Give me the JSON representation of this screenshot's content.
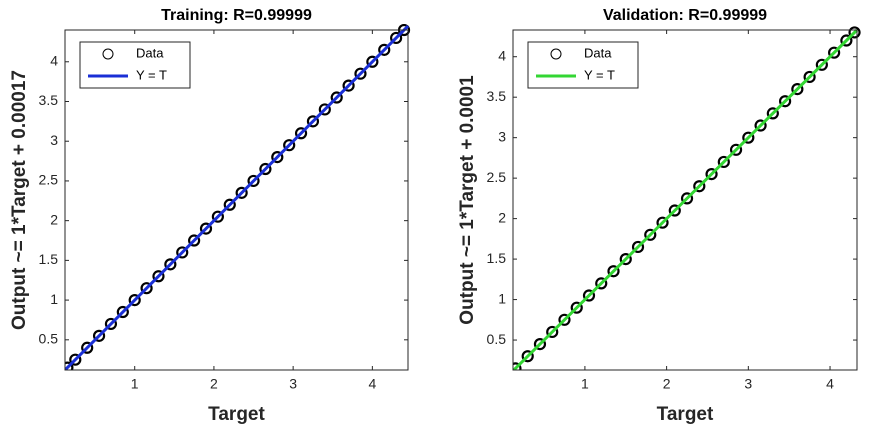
{
  "chart_data": [
    {
      "type": "scatter",
      "title": "Training: R=0.99999",
      "xlabel": "Target",
      "ylabel": "Output ~= 1*Target + 0.00017",
      "xlim": [
        0.12,
        4.45
      ],
      "ylim": [
        0.12,
        4.4
      ],
      "xticks": [
        1,
        2,
        3,
        4
      ],
      "yticks": [
        0.5,
        1,
        1.5,
        2,
        2.5,
        3,
        3.5,
        4
      ],
      "legend": "upper left",
      "series": [
        {
          "name": "Data",
          "color": "#000000",
          "x": [
            0.15,
            0.25,
            0.4,
            0.55,
            0.7,
            0.85,
            1.0,
            1.15,
            1.3,
            1.45,
            1.6,
            1.75,
            1.9,
            2.05,
            2.2,
            2.35,
            2.5,
            2.65,
            2.8,
            2.95,
            3.1,
            3.25,
            3.4,
            3.55,
            3.7,
            3.85,
            4.0,
            4.15,
            4.3,
            4.4
          ],
          "values": [
            0.15,
            0.25,
            0.4,
            0.55,
            0.7,
            0.85,
            1.0,
            1.15,
            1.3,
            1.45,
            1.6,
            1.75,
            1.9,
            2.05,
            2.2,
            2.35,
            2.5,
            2.65,
            2.8,
            2.95,
            3.1,
            3.25,
            3.4,
            3.55,
            3.7,
            3.85,
            4.0,
            4.15,
            4.3,
            4.4
          ]
        },
        {
          "name": "Y = T",
          "color": "#1a2fd6",
          "x": [
            0.12,
            4.45
          ],
          "values": [
            0.12,
            4.45
          ]
        }
      ]
    },
    {
      "type": "scatter",
      "title": "Validation: R=0.99999",
      "xlabel": "Target",
      "ylabel": "Output ~= 1*Target + 0.0001",
      "xlim": [
        0.12,
        4.33
      ],
      "ylim": [
        0.13,
        4.33
      ],
      "xticks": [
        1,
        2,
        3,
        4
      ],
      "yticks": [
        0.5,
        1,
        1.5,
        2,
        2.5,
        3,
        3.5,
        4
      ],
      "legend": "upper left",
      "series": [
        {
          "name": "Data",
          "color": "#000000",
          "x": [
            0.15,
            0.3,
            0.45,
            0.6,
            0.75,
            0.9,
            1.05,
            1.2,
            1.35,
            1.5,
            1.65,
            1.8,
            1.95,
            2.1,
            2.25,
            2.4,
            2.55,
            2.7,
            2.85,
            3.0,
            3.15,
            3.3,
            3.45,
            3.6,
            3.75,
            3.9,
            4.05,
            4.2,
            4.3
          ],
          "values": [
            0.15,
            0.3,
            0.45,
            0.6,
            0.75,
            0.9,
            1.05,
            1.2,
            1.35,
            1.5,
            1.65,
            1.8,
            1.95,
            2.1,
            2.25,
            2.4,
            2.55,
            2.7,
            2.85,
            3.0,
            3.15,
            3.3,
            3.45,
            3.6,
            3.75,
            3.9,
            4.05,
            4.2,
            4.3
          ]
        },
        {
          "name": "Y = T",
          "color": "#33d633",
          "x": [
            0.13,
            4.33
          ],
          "values": [
            0.13,
            4.33
          ]
        }
      ]
    }
  ]
}
